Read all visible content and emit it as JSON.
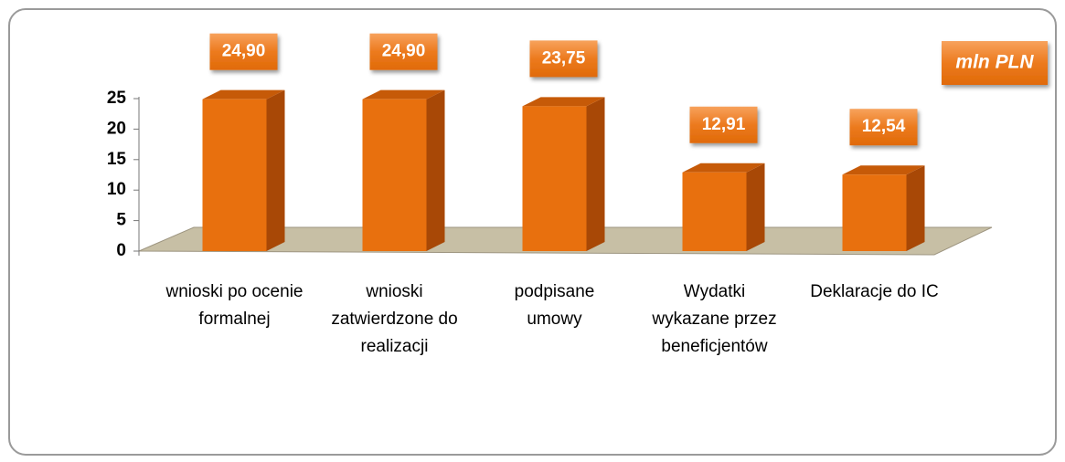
{
  "chart_data": {
    "type": "bar3d",
    "categories": [
      "wnioski po ocenie formalnej",
      "wnioski zatwierdzone do realizacji",
      "podpisane umowy",
      "Wydatki wykazane przez beneficjentów",
      "Deklaracje do IC"
    ],
    "values": [
      24.9,
      24.9,
      23.75,
      12.91,
      12.54
    ],
    "value_labels": [
      "24,90",
      "24,90",
      "23,75",
      "12,91",
      "12,54"
    ],
    "color": "#e8700e",
    "ylim": [
      0,
      25
    ],
    "yticks": [
      0,
      5,
      10,
      15,
      20,
      25
    ],
    "annotation": "mln PLN"
  }
}
